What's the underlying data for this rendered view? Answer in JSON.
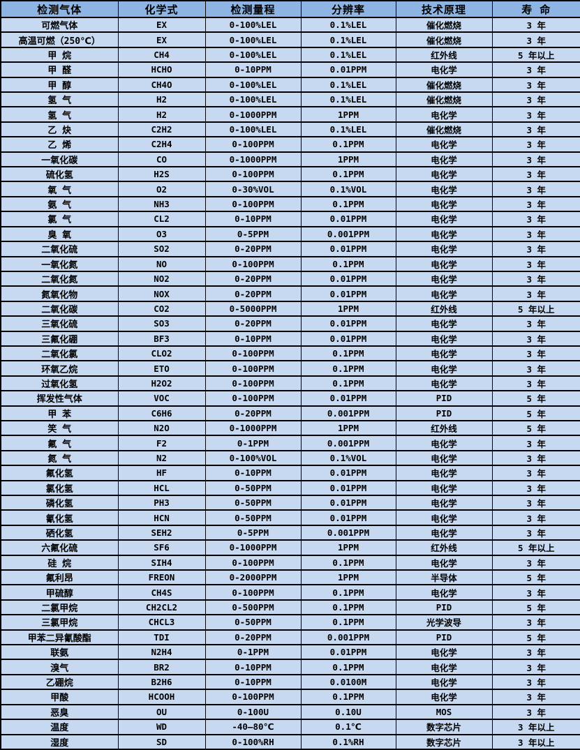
{
  "colors": {
    "header_bg": "#8DB4E2",
    "row_bg": "#C6D9F1",
    "border": "#000000",
    "text": "#000000"
  },
  "table": {
    "headers": [
      "检测气体",
      "化学式",
      "检测量程",
      "分辨率",
      "技术原理",
      "寿 命"
    ],
    "rows": [
      [
        "可燃气体",
        "EX",
        "0-100%LEL",
        "0.1%LEL",
        "催化燃烧",
        "3 年"
      ],
      [
        "高温可燃（250℃）",
        "EX",
        "0-100%LEL",
        "0.1%LEL",
        "催化燃烧",
        "3 年"
      ],
      [
        "甲 烷",
        "CH4",
        "0-100%LEL",
        "0.1%LEL",
        "红外线",
        "5 年以上"
      ],
      [
        "甲 醛",
        "HCHO",
        "0-10PPM",
        "0.01PPM",
        "电化学",
        "3 年"
      ],
      [
        "甲 醇",
        "CH4O",
        "0-100%LEL",
        "0.1%LEL",
        "催化燃烧",
        "3 年"
      ],
      [
        "氢 气",
        "H2",
        "0-100%LEL",
        "0.1%LEL",
        "催化燃烧",
        "3 年"
      ],
      [
        "氢 气",
        "H2",
        "0-1000PPM",
        "1PPM",
        "电化学",
        "3 年"
      ],
      [
        "乙 炔",
        "C2H2",
        "0-100%LEL",
        "0.1%LEL",
        "催化燃烧",
        "3 年"
      ],
      [
        "乙 烯",
        "C2H4",
        "0-100PPM",
        "0.1PPM",
        "电化学",
        "3 年"
      ],
      [
        "一氧化碳",
        "CO",
        "0-1000PPM",
        "1PPM",
        "电化学",
        "3 年"
      ],
      [
        "硫化氢",
        "H2S",
        "0-100PPM",
        "0.1PPM",
        "电化学",
        "3 年"
      ],
      [
        "氧 气",
        "O2",
        "0-30%VOL",
        "0.1%VOL",
        "电化学",
        "3 年"
      ],
      [
        "氨 气",
        "NH3",
        "0-100PPM",
        "0.1PPM",
        "电化学",
        "3 年"
      ],
      [
        "氯 气",
        "CL2",
        "0-10PPM",
        "0.01PPM",
        "电化学",
        "3 年"
      ],
      [
        "臭 氧",
        "O3",
        "0-5PPM",
        "0.001PPM",
        "电化学",
        "3 年"
      ],
      [
        "二氧化硫",
        "SO2",
        "0-20PPM",
        "0.01PPM",
        "电化学",
        "3 年"
      ],
      [
        "一氧化氮",
        "NO",
        "0-100PPM",
        "0.1PPM",
        "电化学",
        "3 年"
      ],
      [
        "二氧化氮",
        "NO2",
        "0-20PPM",
        "0.01PPM",
        "电化学",
        "3 年"
      ],
      [
        "氮氧化物",
        "NOX",
        "0-20PPM",
        "0.01PPM",
        "电化学",
        "3 年"
      ],
      [
        "二氧化碳",
        "CO2",
        "0-5000PPM",
        "1PPM",
        "红外线",
        "5 年以上"
      ],
      [
        "三氧化硫",
        "SO3",
        "0-20PPM",
        "0.01PPM",
        "电化学",
        "3 年"
      ],
      [
        "三氟化硼",
        "BF3",
        "0-10PPM",
        "0.01PPM",
        "电化学",
        "3 年"
      ],
      [
        "二氧化氯",
        "CLO2",
        "0-100PPM",
        "0.1PPM",
        "电化学",
        "3 年"
      ],
      [
        "环氧乙烷",
        "ETO",
        "0-100PPM",
        "0.1PPM",
        "电化学",
        "3 年"
      ],
      [
        "过氧化氢",
        "H2O2",
        "0-100PPM",
        "0.1PPM",
        "电化学",
        "3 年"
      ],
      [
        "挥发性气体",
        "VOC",
        "0-100PPM",
        "0.01PPM",
        "PID",
        "5 年"
      ],
      [
        "甲 苯",
        "C6H6",
        "0-20PPM",
        "0.001PPM",
        "PID",
        "5 年"
      ],
      [
        "笑 气",
        "N2O",
        "0-1000PPM",
        "1PPM",
        "红外线",
        "5 年"
      ],
      [
        "氟 气",
        "F2",
        "0-1PPM",
        "0.001PPM",
        "电化学",
        "3 年"
      ],
      [
        "氮 气",
        "N2",
        "0-100%VOL",
        "0.1%VOL",
        "电化学",
        "3 年"
      ],
      [
        "氟化氢",
        "HF",
        "0-10PPM",
        "0.01PPM",
        "电化学",
        "3 年"
      ],
      [
        "氯化氢",
        "HCL",
        "0-50PPM",
        "0.01PPM",
        "电化学",
        "3 年"
      ],
      [
        "磷化氢",
        "PH3",
        "0-50PPM",
        "0.01PPM",
        "电化学",
        "3 年"
      ],
      [
        "氰化氢",
        "HCN",
        "0-50PPM",
        "0.01PPM",
        "电化学",
        "3 年"
      ],
      [
        "硒化氢",
        "SEH2",
        "0-5PPM",
        "0.001PPM",
        "电化学",
        "3 年"
      ],
      [
        "六氟化硫",
        "SF6",
        "0-1000PPM",
        "1PPM",
        "红外线",
        "5 年以上"
      ],
      [
        "硅 烷",
        "SIH4",
        "0-100PPM",
        "0.1PPM",
        "电化学",
        "3 年"
      ],
      [
        "氟利昂",
        "FREON",
        "0-2000PPM",
        "1PPM",
        "半导体",
        "5 年"
      ],
      [
        "甲硫醇",
        "CH4S",
        "0-100PPM",
        "0.1PPM",
        "电化学",
        "3 年"
      ],
      [
        "二氯甲烷",
        "CH2CL2",
        "0-500PPM",
        "0.1PPM",
        "PID",
        "5 年"
      ],
      [
        "三氯甲烷",
        "CHCL3",
        "0-50PPM",
        "0.1PPM",
        "光学波导",
        "3 年"
      ],
      [
        "甲苯二异氰酸酯",
        "TDI",
        "0-20PPM",
        "0.001PPM",
        "PID",
        "5 年"
      ],
      [
        "联氨",
        "N2H4",
        "0-1PPM",
        "0.01PPM",
        "电化学",
        "3 年"
      ],
      [
        "溴气",
        "BR2",
        "0-10PPM",
        "0.1PPM",
        "电化学",
        "3 年"
      ],
      [
        "乙硼烷",
        "B2H6",
        "0-10PPM",
        "0.0100M",
        "电化学",
        "3 年"
      ],
      [
        "甲酸",
        "HCOOH",
        "0-100PPM",
        "0.1PPM",
        "电化学",
        "3 年"
      ],
      [
        "恶臭",
        "OU",
        "0-100U",
        "0.10U",
        "MOS",
        "3 年"
      ],
      [
        "温度",
        "WD",
        "-40—80℃",
        "0.1℃",
        "数字芯片",
        "3 年以上"
      ],
      [
        "湿度",
        "SD",
        "0-100%RH",
        "0.1%RH",
        "数字芯片",
        "3 年以上"
      ]
    ]
  }
}
